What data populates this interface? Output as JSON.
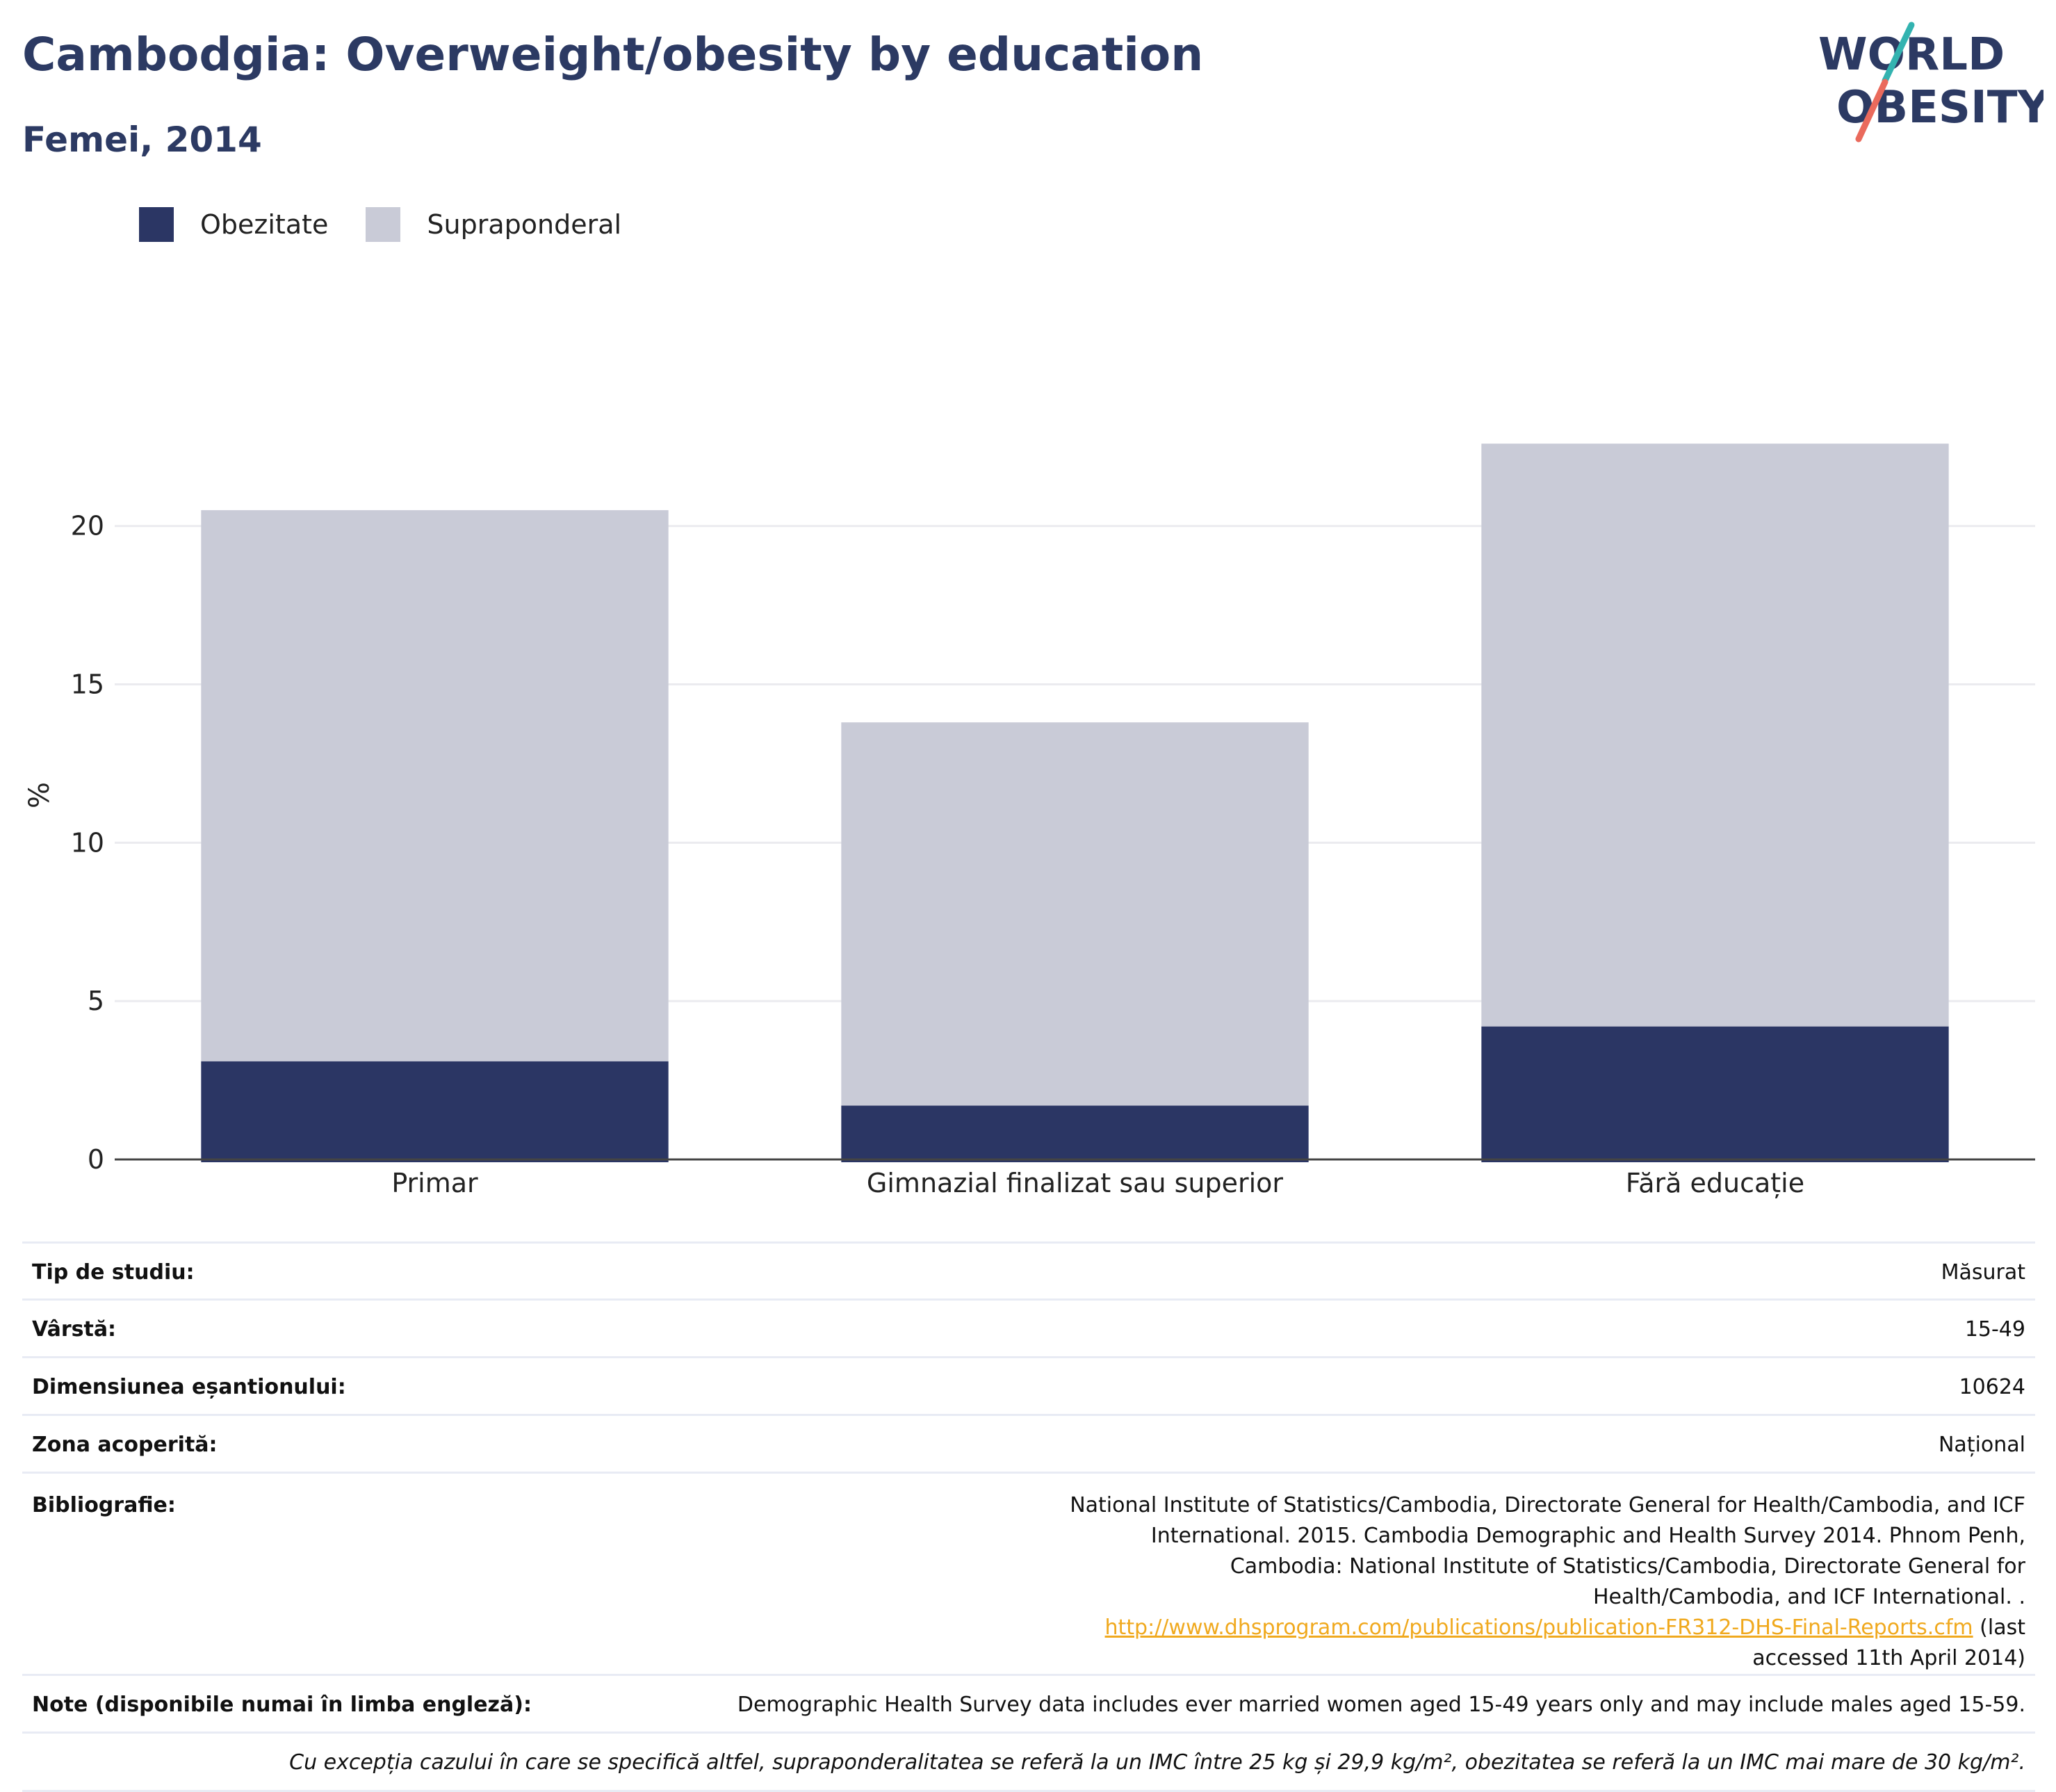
{
  "header": {
    "title": "Cambodgia: Overweight/obesity by education",
    "subtitle": "Femei, 2014"
  },
  "logo": {
    "line1": "WORLD",
    "line2": "OBESITY",
    "icon": "world-obesity-logo"
  },
  "legend": [
    {
      "label": "Obezitate",
      "color": "#2b3664"
    },
    {
      "label": "Supraponderal",
      "color": "#c9cbd7"
    }
  ],
  "chart_data": {
    "type": "bar",
    "stacked": true,
    "categories": [
      "Primar",
      "Gimnazial finalizat sau superior",
      "Fără educație"
    ],
    "series": [
      {
        "name": "Obezitate",
        "color": "#2b3664",
        "values": [
          3.1,
          1.7,
          4.2
        ]
      },
      {
        "name": "Supraponderal",
        "color": "#c9cbd7",
        "values": [
          17.4,
          12.1,
          18.4
        ]
      }
    ],
    "ylabel": "%",
    "ylim": [
      0,
      23
    ],
    "yticks": [
      0,
      5,
      10,
      15,
      20
    ],
    "grid": true,
    "legend_position": "top-left"
  },
  "info": {
    "study_type": {
      "label": "Tip de studiu:",
      "value": "Măsurat"
    },
    "age": {
      "label": "Vârstă:",
      "value": "15-49"
    },
    "sample_size": {
      "label": "Dimensiunea eșantionului:",
      "value": "10624"
    },
    "coverage": {
      "label": "Zona acoperită:",
      "value": "Național"
    },
    "bibliography": {
      "label": "Bibliografie:",
      "text": "National Institute of Statistics/Cambodia, Directorate General for Health/Cambodia, and ICF International. 2015. Cambodia Demographic and Health Survey 2014. Phnom Penh, Cambodia: National Institute of Statistics/Cambodia, Directorate General for Health/Cambodia, and ICF International. .",
      "link": "http://www.dhsprogram.com/publications/publication-FR312-DHS-Final-Reports.cfm",
      "suffix": "(last accessed 11th April 2014)"
    },
    "notes": {
      "label": "Note (disponibile numai în limba engleză):",
      "value": "Demographic Health Survey data includes ever married women aged 15-49 years only and may include males aged 15-59."
    },
    "footnote": "Cu excepția cazului în care se specifică altfel, supraponderalitatea se referă la un IMC între 25 kg și 29,9 kg/m², obezitatea se referă la un IMC mai mare de 30 kg/m²."
  }
}
